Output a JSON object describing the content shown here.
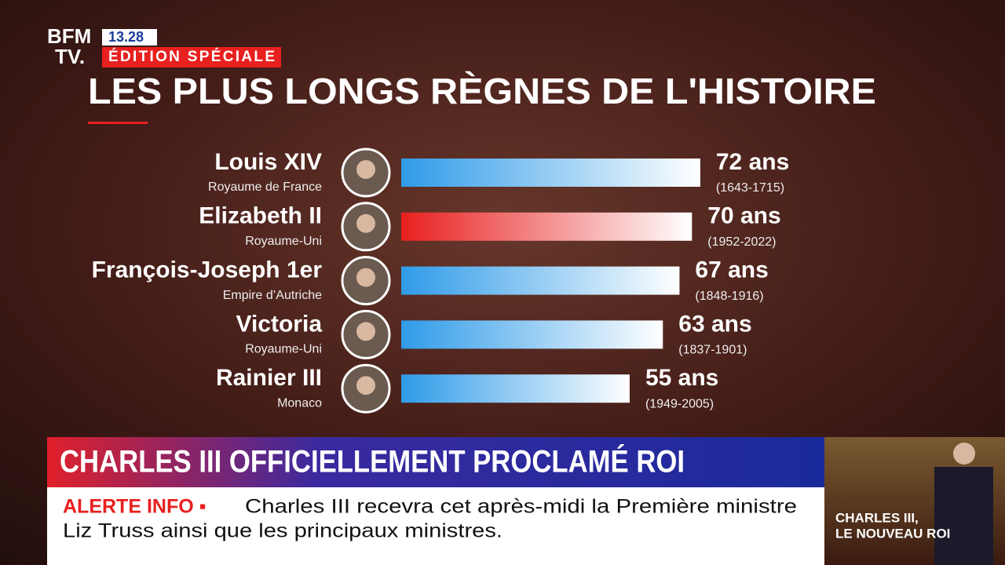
{
  "header": {
    "logo_top": "BFM",
    "logo_bottom": "TV.",
    "time": "13.28",
    "edition": "ÉDITION SPÉCIALE"
  },
  "chart_data": {
    "type": "bar",
    "orientation": "horizontal",
    "title": "LES PLUS LONGS RÈGNES DE L'HISTOIRE",
    "categories": [
      "Louis XIV",
      "Elizabeth II",
      "François-Joseph 1er",
      "Victoria",
      "Rainier III"
    ],
    "subtitles": [
      "Royaume de France",
      "Royaume-Uni",
      "Empire d’Autriche",
      "Royaume-Uni",
      "Monaco"
    ],
    "values": [
      72,
      70,
      67,
      63,
      55
    ],
    "value_labels": [
      "72 ans",
      "70 ans",
      "67 ans",
      "63 ans",
      "55 ans"
    ],
    "periods": [
      "(1643-1715)",
      "(1952-2022)",
      "(1848-1916)",
      "(1837-1901)",
      "(1949-2005)"
    ],
    "colors": [
      "#2f9be8",
      "#e8201f",
      "#2f9be8",
      "#2f9be8",
      "#2f9be8"
    ]
  },
  "banner": {
    "headline": "CHARLES III OFFICIELLEMENT PROCLAMÉ ROI",
    "alert_label": "ALERTE INFO ▪",
    "alert_line_1": "Charles III recevra cet après-midi la Première ministre",
    "alert_line_2": "Liz Truss ainsi que les principaux ministres."
  },
  "inset": {
    "caption_1": "CHARLES III,",
    "caption_2": "LE NOUVEAU ROI"
  }
}
